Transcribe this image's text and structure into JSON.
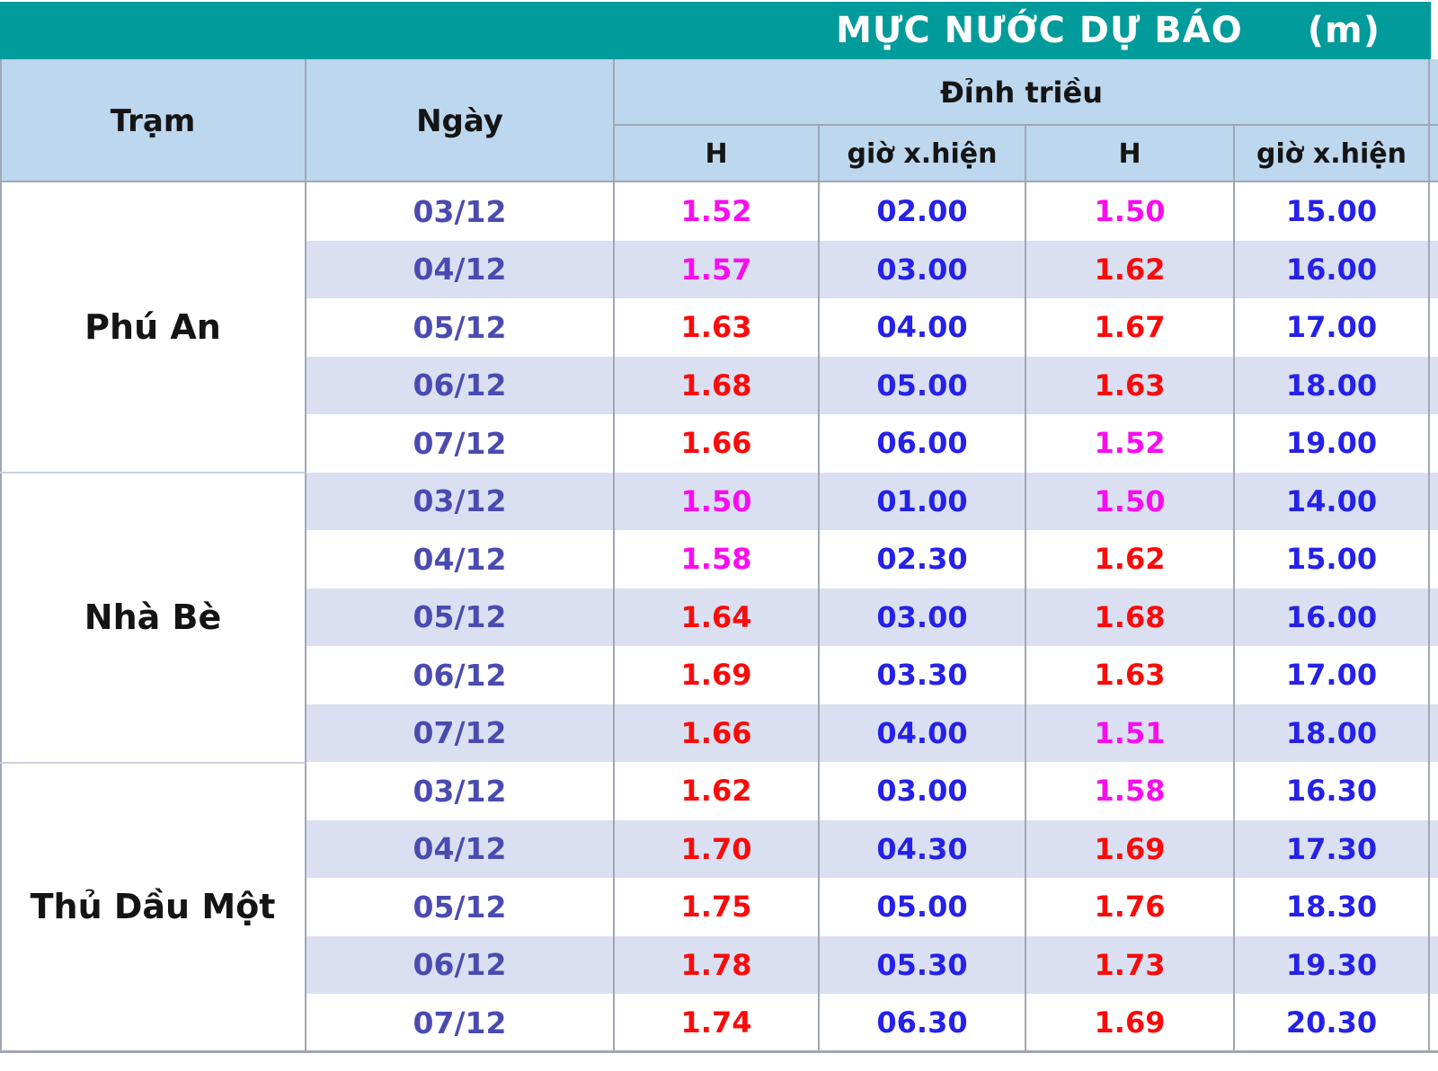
{
  "title": {
    "text": "MỰC NƯỚC DỰ BÁO",
    "unit": "(m)"
  },
  "header": {
    "station_label": "Trạm",
    "date_label": "Ngày",
    "tide_peak_label": "Đỉnh triều",
    "h_label_1": "H",
    "time_label_1": "giờ x.hiện",
    "h_label_2": "H",
    "time_label_2": "giờ x.hiện"
  },
  "colors": {
    "teal_header_bg": "#009B9A",
    "title_text": "#FFFFFF",
    "column_header_bg": "#BDD7EE",
    "row_stripe_bg": "#DAE0F1",
    "row_plain_bg": "#FFFFFF",
    "header_text": "#151515",
    "date_text": "#4A4BB0",
    "time_text": "#2521E8",
    "h_red": "#FB0A0A",
    "h_magenta": "#F90DEF",
    "grid_border": "#A0A7B4",
    "block_divider": "#C9CFDF"
  },
  "chart_data": {
    "type": "table",
    "title": "MỰC NƯỚC DỰ BÁO (m)",
    "columns": [
      "Trạm",
      "Ngày",
      "Đỉnh triều H",
      "Đỉnh triều giờ x.hiện",
      "Đỉnh triều H",
      "Đỉnh triều giờ x.hiện"
    ],
    "stations": [
      {
        "name": "Phú An",
        "rows": [
          {
            "date": "03/12",
            "h1": "1.52",
            "h1_color": "magenta",
            "t1": "02.00",
            "h2": "1.50",
            "h2_color": "magenta",
            "t2": "15.00"
          },
          {
            "date": "04/12",
            "h1": "1.57",
            "h1_color": "magenta",
            "t1": "03.00",
            "h2": "1.62",
            "h2_color": "red",
            "t2": "16.00"
          },
          {
            "date": "05/12",
            "h1": "1.63",
            "h1_color": "red",
            "t1": "04.00",
            "h2": "1.67",
            "h2_color": "red",
            "t2": "17.00"
          },
          {
            "date": "06/12",
            "h1": "1.68",
            "h1_color": "red",
            "t1": "05.00",
            "h2": "1.63",
            "h2_color": "red",
            "t2": "18.00"
          },
          {
            "date": "07/12",
            "h1": "1.66",
            "h1_color": "red",
            "t1": "06.00",
            "h2": "1.52",
            "h2_color": "magenta",
            "t2": "19.00"
          }
        ]
      },
      {
        "name": "Nhà Bè",
        "rows": [
          {
            "date": "03/12",
            "h1": "1.50",
            "h1_color": "magenta",
            "t1": "01.00",
            "h2": "1.50",
            "h2_color": "magenta",
            "t2": "14.00"
          },
          {
            "date": "04/12",
            "h1": "1.58",
            "h1_color": "magenta",
            "t1": "02.30",
            "h2": "1.62",
            "h2_color": "red",
            "t2": "15.00"
          },
          {
            "date": "05/12",
            "h1": "1.64",
            "h1_color": "red",
            "t1": "03.00",
            "h2": "1.68",
            "h2_color": "red",
            "t2": "16.00"
          },
          {
            "date": "06/12",
            "h1": "1.69",
            "h1_color": "red",
            "t1": "03.30",
            "h2": "1.63",
            "h2_color": "red",
            "t2": "17.00"
          },
          {
            "date": "07/12",
            "h1": "1.66",
            "h1_color": "red",
            "t1": "04.00",
            "h2": "1.51",
            "h2_color": "magenta",
            "t2": "18.00"
          }
        ]
      },
      {
        "name": "Thủ Dầu Một",
        "rows": [
          {
            "date": "03/12",
            "h1": "1.62",
            "h1_color": "red",
            "t1": "03.00",
            "h2": "1.58",
            "h2_color": "magenta",
            "t2": "16.30"
          },
          {
            "date": "04/12",
            "h1": "1.70",
            "h1_color": "red",
            "t1": "04.30",
            "h2": "1.69",
            "h2_color": "red",
            "t2": "17.30"
          },
          {
            "date": "05/12",
            "h1": "1.75",
            "h1_color": "red",
            "t1": "05.00",
            "h2": "1.76",
            "h2_color": "red",
            "t2": "18.30"
          },
          {
            "date": "06/12",
            "h1": "1.78",
            "h1_color": "red",
            "t1": "05.30",
            "h2": "1.73",
            "h2_color": "red",
            "t2": "19.30"
          },
          {
            "date": "07/12",
            "h1": "1.74",
            "h1_color": "red",
            "t1": "06.30",
            "h2": "1.69",
            "h2_color": "red",
            "t2": "20.30"
          }
        ]
      }
    ]
  }
}
